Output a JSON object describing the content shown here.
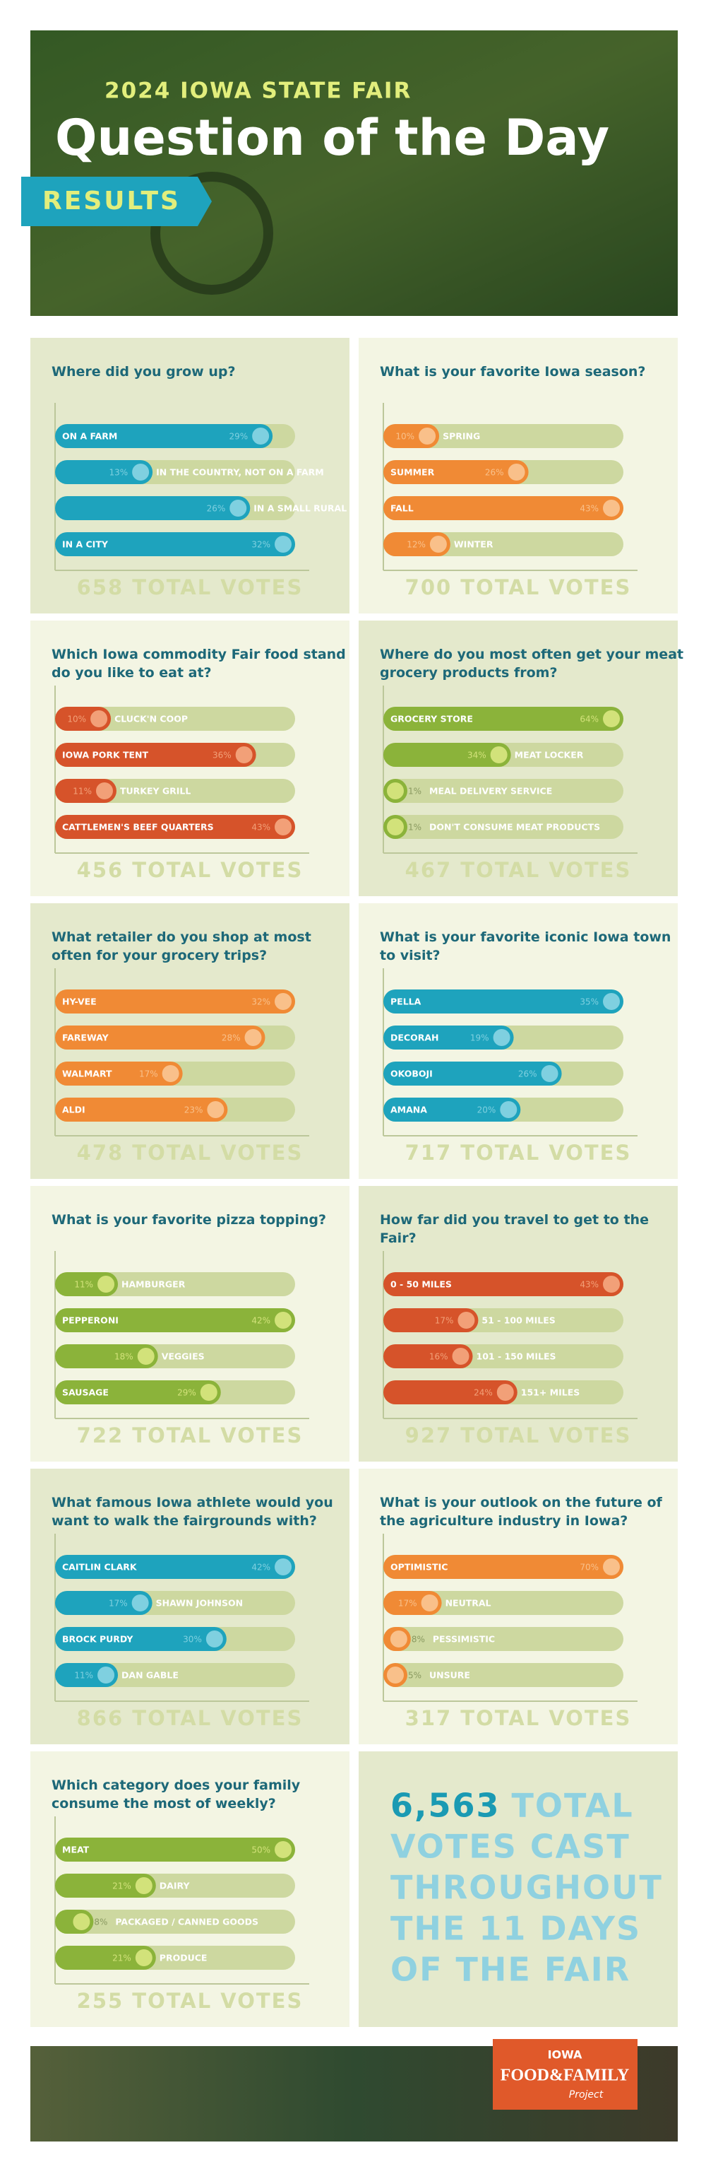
{
  "header": {
    "kicker": "2024 IOWA STATE FAIR",
    "title": "Question of the Day",
    "ribbon": "RESULTS"
  },
  "chart_data": [
    {
      "type": "bar",
      "title": "Where did you grow up?",
      "color": "#1ea3bd",
      "light": "#7fd0e0",
      "xlim": [
        0,
        32
      ],
      "categories": [
        "ON A FARM",
        "IN THE COUNTRY, NOT ON A FARM",
        "IN A SMALL RURAL TOWN",
        "IN A CITY"
      ],
      "values": [
        29,
        13,
        26,
        32
      ],
      "value_labels": [
        "29%",
        "13%",
        "26%",
        "32%"
      ],
      "total": "658 TOTAL VOTES"
    },
    {
      "type": "bar",
      "title": "What is your favorite Iowa season?",
      "color": "#f08a35",
      "light": "#f9c08a",
      "xlim": [
        0,
        43
      ],
      "categories": [
        "SPRING",
        "SUMMER",
        "FALL",
        "WINTER"
      ],
      "values": [
        10,
        26,
        43,
        12
      ],
      "value_labels": [
        "10%",
        "26%",
        "43%",
        "12%"
      ],
      "total": "700 TOTAL VOTES"
    },
    {
      "type": "bar",
      "title": "Which Iowa commodity Fair food stand do you like to eat at?",
      "color": "#d6532a",
      "light": "#f2a078",
      "xlim": [
        0,
        43
      ],
      "categories": [
        "CLUCK'N COOP",
        "IOWA PORK TENT",
        "TURKEY GRILL",
        "CATTLEMEN'S BEEF QUARTERS"
      ],
      "values": [
        10,
        36,
        11,
        43
      ],
      "value_labels": [
        "10%",
        "36%",
        "11%",
        "43%"
      ],
      "total": "456 TOTAL VOTES"
    },
    {
      "type": "bar",
      "title": "Where do you most often get your meat grocery products from?",
      "color": "#8bb33a",
      "light": "#d2e27a",
      "xlim": [
        0,
        64
      ],
      "categories": [
        "GROCERY STORE",
        "MEAT LOCKER",
        "MEAL DELIVERY SERVICE",
        "DON'T CONSUME MEAT PRODUCTS"
      ],
      "values": [
        64,
        34,
        1,
        1
      ],
      "value_labels": [
        "64%",
        "34%",
        "1%",
        "1%"
      ],
      "total": "467 TOTAL VOTES"
    },
    {
      "type": "bar",
      "title": "What retailer do you shop at most often for your grocery trips?",
      "color": "#f08a35",
      "light": "#f9c08a",
      "xlim": [
        0,
        32
      ],
      "categories": [
        "HY-VEE",
        "FAREWAY",
        "WALMART",
        "ALDI"
      ],
      "values": [
        32,
        28,
        17,
        23
      ],
      "value_labels": [
        "32%",
        "28%",
        "17%",
        "23%"
      ],
      "total": "478 TOTAL VOTES"
    },
    {
      "type": "bar",
      "title": "What is your favorite iconic Iowa town to visit?",
      "color": "#1ea3bd",
      "light": "#7fd0e0",
      "xlim": [
        0,
        35
      ],
      "categories": [
        "PELLA",
        "DECORAH",
        "OKOBOJI",
        "AMANA"
      ],
      "values": [
        35,
        19,
        26,
        20
      ],
      "value_labels": [
        "35%",
        "19%",
        "26%",
        "20%"
      ],
      "total": "717 TOTAL VOTES"
    },
    {
      "type": "bar",
      "title": "What is your favorite pizza topping?",
      "color": "#8bb33a",
      "light": "#d2e27a",
      "xlim": [
        0,
        42
      ],
      "categories": [
        "HAMBURGER",
        "PEPPERONI",
        "VEGGIES",
        "SAUSAGE"
      ],
      "values": [
        11,
        42,
        18,
        29
      ],
      "value_labels": [
        "11%",
        "42%",
        "18%",
        "29%"
      ],
      "total": "722 TOTAL VOTES"
    },
    {
      "type": "bar",
      "title": "How far did you travel to get to the Fair?",
      "color": "#d6532a",
      "light": "#f2a078",
      "xlim": [
        0,
        43
      ],
      "categories": [
        "0 - 50 MILES",
        "51 - 100 MILES",
        "101 - 150 MILES",
        "151+ MILES"
      ],
      "values": [
        43,
        17,
        16,
        24
      ],
      "value_labels": [
        "43%",
        "17%",
        "16%",
        "24%"
      ],
      "total": "927 TOTAL VOTES"
    },
    {
      "type": "bar",
      "title": "What famous Iowa athlete would you want to walk the fairgrounds with?",
      "color": "#1ea3bd",
      "light": "#7fd0e0",
      "xlim": [
        0,
        42
      ],
      "categories": [
        "CAITLIN CLARK",
        "SHAWN JOHNSON",
        "BROCK PURDY",
        "DAN GABLE"
      ],
      "values": [
        42,
        17,
        30,
        11
      ],
      "value_labels": [
        "42%",
        "17%",
        "30%",
        "11%"
      ],
      "total": "866 TOTAL VOTES"
    },
    {
      "type": "bar",
      "title": "What is your outlook on the future of the agriculture industry in Iowa?",
      "color": "#f08a35",
      "light": "#f9c08a",
      "xlim": [
        0,
        70
      ],
      "categories": [
        "OPTIMISTIC",
        "NEUTRAL",
        "PESSIMISTIC",
        "UNSURE"
      ],
      "values": [
        70,
        17,
        8,
        5
      ],
      "value_labels": [
        "70%",
        "17%",
        "8%",
        "5%"
      ],
      "total": "317 TOTAL VOTES"
    },
    {
      "type": "bar",
      "title": "Which category does your family consume the most of weekly?",
      "color": "#8bb33a",
      "light": "#d2e27a",
      "xlim": [
        0,
        50
      ],
      "categories": [
        "MEAT",
        "DAIRY",
        "PACKAGED / CANNED GOODS",
        "PRODUCE"
      ],
      "values": [
        50,
        21,
        8,
        21
      ],
      "value_labels": [
        "50%",
        "21%",
        "8%",
        "21%"
      ],
      "total": "255 TOTAL VOTES"
    }
  ],
  "summary": {
    "number": "6,563",
    "lines": [
      "TOTAL",
      "VOTES CAST",
      "THROUGHOUT",
      "THE 11 DAYS",
      "OF THE FAIR"
    ]
  },
  "footer": {
    "logo_top": "IOWA",
    "logo_main": "FOOD&FAMILY",
    "logo_sub": "Project"
  }
}
